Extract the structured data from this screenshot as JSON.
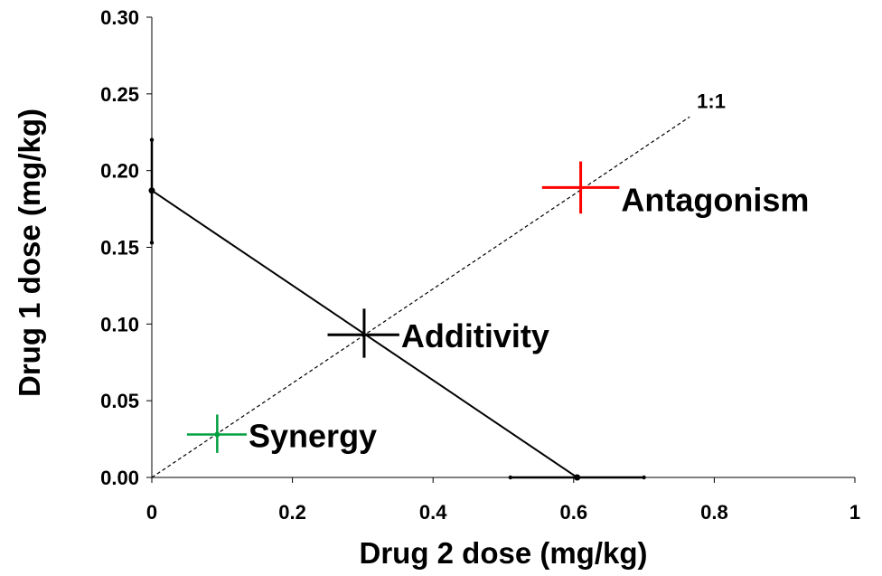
{
  "chart_data": {
    "type": "scatter",
    "xlabel": "Drug 2 dose (mg/kg)",
    "ylabel": "Drug 1 dose (mg/kg)",
    "xlim": [
      0,
      1
    ],
    "ylim": [
      0,
      0.3
    ],
    "x_ticks": [
      "0",
      "0.2",
      "0.4",
      "0.6",
      "0.8",
      "1"
    ],
    "y_ticks": [
      "0.00",
      "0.05",
      "0.10",
      "0.15",
      "0.20",
      "0.25",
      "0.30"
    ],
    "grid": false,
    "legend": "none",
    "isobole": {
      "points": [
        [
          0,
          0.187
        ],
        [
          0.605,
          0
        ]
      ],
      "y_intercept_error": [
        0.153,
        0.22
      ],
      "x_intercept_error": [
        0.51,
        0.7
      ],
      "color": "#000000"
    },
    "ratio_line": {
      "label": "1:1",
      "points": [
        [
          0,
          0
        ],
        [
          0.765,
          0.235
        ]
      ],
      "style": "dashed",
      "color": "#000000"
    },
    "points": [
      {
        "label": "Additivity",
        "x": 0.302,
        "y": 0.093,
        "x_err": [
          0.25,
          0.352
        ],
        "y_err": [
          0.078,
          0.11
        ],
        "color": "#000000"
      },
      {
        "label": "Antagonism",
        "x": 0.61,
        "y": 0.189,
        "x_err": [
          0.555,
          0.665
        ],
        "y_err": [
          0.172,
          0.206
        ],
        "color": "#ff0000"
      },
      {
        "label": "Synergy",
        "x": 0.093,
        "y": 0.028,
        "x_err": [
          0.05,
          0.135
        ],
        "y_err": [
          0.016,
          0.041
        ],
        "color": "#00a040"
      }
    ]
  }
}
